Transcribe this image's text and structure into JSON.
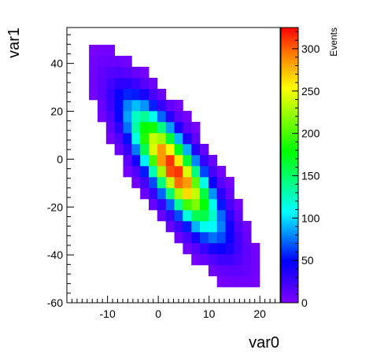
{
  "chart_data": {
    "type": "heatmap",
    "title": "",
    "xlabel": "var0",
    "ylabel": "var1",
    "zlabel": "Events",
    "xlim": [
      -18,
      24
    ],
    "ylim": [
      -60,
      55
    ],
    "zlim": [
      0,
      325
    ],
    "x_ticks": [
      -10,
      0,
      10,
      20
    ],
    "y_ticks": [
      -60,
      -40,
      -20,
      0,
      20,
      40
    ],
    "z_ticks": [
      0,
      50,
      100,
      150,
      200,
      250,
      300
    ],
    "bin_width_x": 1.68,
    "bin_width_y": 4.6,
    "grid": false,
    "colorbar": "right",
    "colormap": [
      "#7f00ff",
      "#0000ff",
      "#00ffff",
      "#00ff00",
      "#ffff00",
      "#ff8000",
      "#ff0000"
    ]
  }
}
